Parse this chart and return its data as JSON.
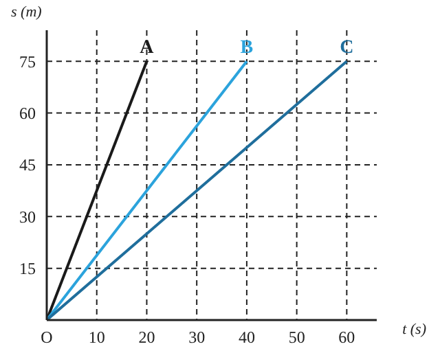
{
  "chart_data": {
    "type": "line",
    "xlabel": "t (s)",
    "ylabel": "s (m)",
    "series": [
      {
        "name": "A",
        "color": "#1a1a1a",
        "x": [
          0,
          20
        ],
        "values": [
          0,
          75
        ]
      },
      {
        "name": "B",
        "color": "#2ba3dc",
        "x": [
          0,
          40
        ],
        "values": [
          0,
          75
        ]
      },
      {
        "name": "C",
        "color": "#1f6e9c",
        "x": [
          0,
          60
        ],
        "values": [
          0,
          75
        ]
      }
    ],
    "xlim": [
      0,
      66
    ],
    "ylim": [
      0,
      84
    ],
    "xticks": [
      {
        "value": 0,
        "label": "O"
      },
      10,
      20,
      30,
      40,
      50,
      60
    ],
    "yticks": [
      {
        "value": 0,
        "label": null
      },
      15,
      30,
      45,
      60,
      75
    ],
    "grid": true,
    "marker": "none",
    "line_style": "solid"
  }
}
